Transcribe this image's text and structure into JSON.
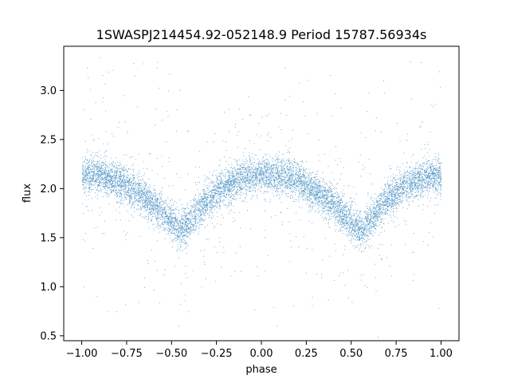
{
  "chart_data": {
    "type": "scatter",
    "title": "1SWASPJ214454.92-052148.9 Period 15787.56934s",
    "xlabel": "phase",
    "ylabel": "flux",
    "xlim": [
      -1.1,
      1.1
    ],
    "ylim": [
      0.45,
      3.45
    ],
    "xticks": [
      -1.0,
      -0.75,
      -0.5,
      -0.25,
      0.0,
      0.25,
      0.5,
      0.75,
      1.0
    ],
    "xtick_labels": [
      "−1.00",
      "−0.75",
      "−0.50",
      "−0.25",
      "0.00",
      "0.25",
      "0.50",
      "0.75",
      "1.00"
    ],
    "yticks": [
      0.5,
      1.0,
      1.5,
      2.0,
      2.5,
      3.0
    ],
    "ytick_labels": [
      "0.5",
      "1.0",
      "1.5",
      "2.0",
      "2.5",
      "3.0"
    ],
    "grid": false,
    "legend": "none",
    "point_color": "#1f77b4",
    "series": [
      {
        "phase_range": [
          -1.0,
          1.0
        ],
        "trend": {
          "phase": [
            -1.0,
            -0.9,
            -0.8,
            -0.7,
            -0.6,
            -0.5,
            -0.45,
            -0.4,
            -0.3,
            -0.2,
            -0.1,
            0.0,
            0.1,
            0.2,
            0.3,
            0.4,
            0.5,
            0.55,
            0.6,
            0.7,
            0.8,
            0.9,
            1.0
          ],
          "flux": [
            2.15,
            2.14,
            2.08,
            1.98,
            1.84,
            1.66,
            1.57,
            1.66,
            1.89,
            2.03,
            2.11,
            2.15,
            2.14,
            2.08,
            1.98,
            1.84,
            1.66,
            1.57,
            1.66,
            1.89,
            2.03,
            2.11,
            2.15
          ]
        },
        "core_scatter": 0.09,
        "outlier_flux_range": [
          0.6,
          3.3
        ]
      }
    ]
  }
}
